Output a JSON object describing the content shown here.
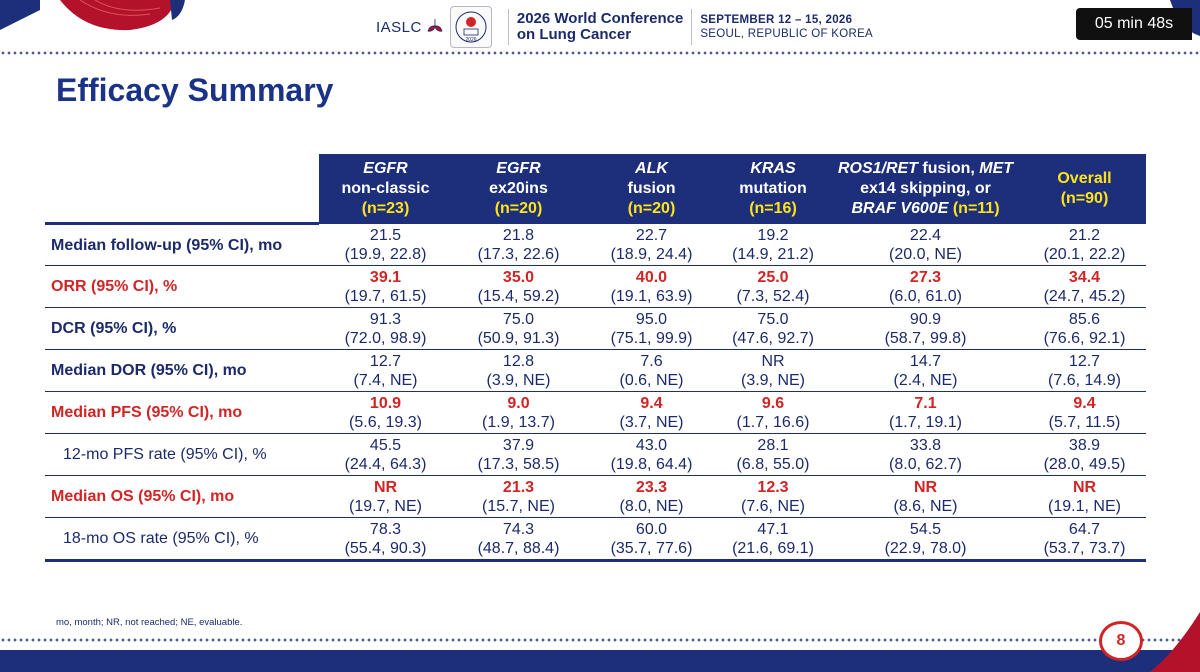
{
  "header": {
    "org": "IASLC",
    "conference_name": [
      "2026 World Conference",
      "on Lung Cancer"
    ],
    "conference_dates": "SEPTEMBER 12 – 15, 2026",
    "conference_location": "SEOUL, REPUBLIC OF KOREA",
    "timer": "05 min 48s",
    "seal_year": "2026"
  },
  "slide": {
    "title": "Efficacy Summary",
    "page_number": "8",
    "footnote": "mo, month; NR, not reached; NE, evaluable."
  },
  "colors": {
    "navy": "#1d2e7a",
    "red": "#d22424",
    "yellow": "#ffe419"
  },
  "table": {
    "columns": [
      {
        "line1": "EGFR",
        "line2": "non-classic",
        "n": "(n=23)"
      },
      {
        "line1": "EGFR",
        "line2": "ex20ins",
        "n": "(n=20)"
      },
      {
        "line1": "ALK",
        "line2": "fusion",
        "n": "(n=20)"
      },
      {
        "line1": "KRAS",
        "line2": "mutation",
        "n": "(n=16)"
      },
      {
        "line1a": "ROS1/RET",
        "line1b": " fusion, ",
        "line1c": "MET",
        "line2": "ex14 skipping, or",
        "line3": "BRAF V600E",
        "n": " (n=11)"
      },
      {
        "line1": "Overall",
        "n": "(n=90)"
      }
    ],
    "rows": [
      {
        "label": "Median follow-up (95% CI), mo",
        "values": [
          "21.5",
          "21.8",
          "22.7",
          "19.2",
          "22.4",
          "21.2"
        ],
        "cis": [
          "(19.9, 22.8)",
          "(17.3, 22.6)",
          "(18.9, 24.4)",
          "(14.9, 21.2)",
          "(20.0, NE)",
          "(20.1, 22.2)"
        ]
      },
      {
        "label": "ORR (95% CI), %",
        "values": [
          "39.1",
          "35.0",
          "40.0",
          "25.0",
          "27.3",
          "34.4"
        ],
        "cis": [
          "(19.7, 61.5)",
          "(15.4, 59.2)",
          "(19.1, 63.9)",
          "(7.3, 52.4)",
          "(6.0, 61.0)",
          "(24.7, 45.2)"
        ]
      },
      {
        "label": "DCR (95% CI), %",
        "values": [
          "91.3",
          "75.0",
          "95.0",
          "75.0",
          "90.9",
          "85.6"
        ],
        "cis": [
          "(72.0, 98.9)",
          "(50.9, 91.3)",
          "(75.1, 99.9)",
          "(47.6, 92.7)",
          "(58.7, 99.8)",
          "(76.6, 92.1)"
        ]
      },
      {
        "label": "Median DOR (95% CI), mo",
        "values": [
          "12.7",
          "12.8",
          "7.6",
          "NR",
          "14.7",
          "12.7"
        ],
        "cis": [
          "(7.4, NE)",
          "(3.9, NE)",
          "(0.6, NE)",
          "(3.9, NE)",
          "(2.4, NE)",
          "(7.6, 14.9)"
        ]
      },
      {
        "label": "Median PFS (95% CI), mo",
        "values": [
          "10.9",
          "9.0",
          "9.4",
          "9.6",
          "7.1",
          "9.4"
        ],
        "cis": [
          "(5.6, 19.3)",
          "(1.9, 13.7)",
          "(3.7, NE)",
          "(1.7, 16.6)",
          "(1.7, 19.1)",
          "(5.7, 11.5)"
        ]
      },
      {
        "label": "12-mo PFS rate (95% CI), %",
        "values": [
          "45.5",
          "37.9",
          "43.0",
          "28.1",
          "33.8",
          "38.9"
        ],
        "cis": [
          "(24.4, 64.3)",
          "(17.3, 58.5)",
          "(19.8, 64.4)",
          "(6.8, 55.0)",
          "(8.0, 62.7)",
          "(28.0, 49.5)"
        ]
      },
      {
        "label": "Median OS (95% CI), mo",
        "values": [
          "NR",
          "21.3",
          "23.3",
          "12.3",
          "NR",
          "NR"
        ],
        "cis": [
          "(19.7, NE)",
          "(15.7, NE)",
          "(8.0, NE)",
          "(7.6, NE)",
          "(8.6, NE)",
          "(19.1, NE)"
        ]
      },
      {
        "label": "18-mo OS rate (95% CI), %",
        "values": [
          "78.3",
          "74.3",
          "60.0",
          "47.1",
          "54.5",
          "64.7"
        ],
        "cis": [
          "(55.4, 90.3)",
          "(48.7, 88.4)",
          "(35.7, 77.6)",
          "(21.6, 69.1)",
          "(22.9, 78.0)",
          "(53.7, 73.7)"
        ]
      }
    ]
  }
}
